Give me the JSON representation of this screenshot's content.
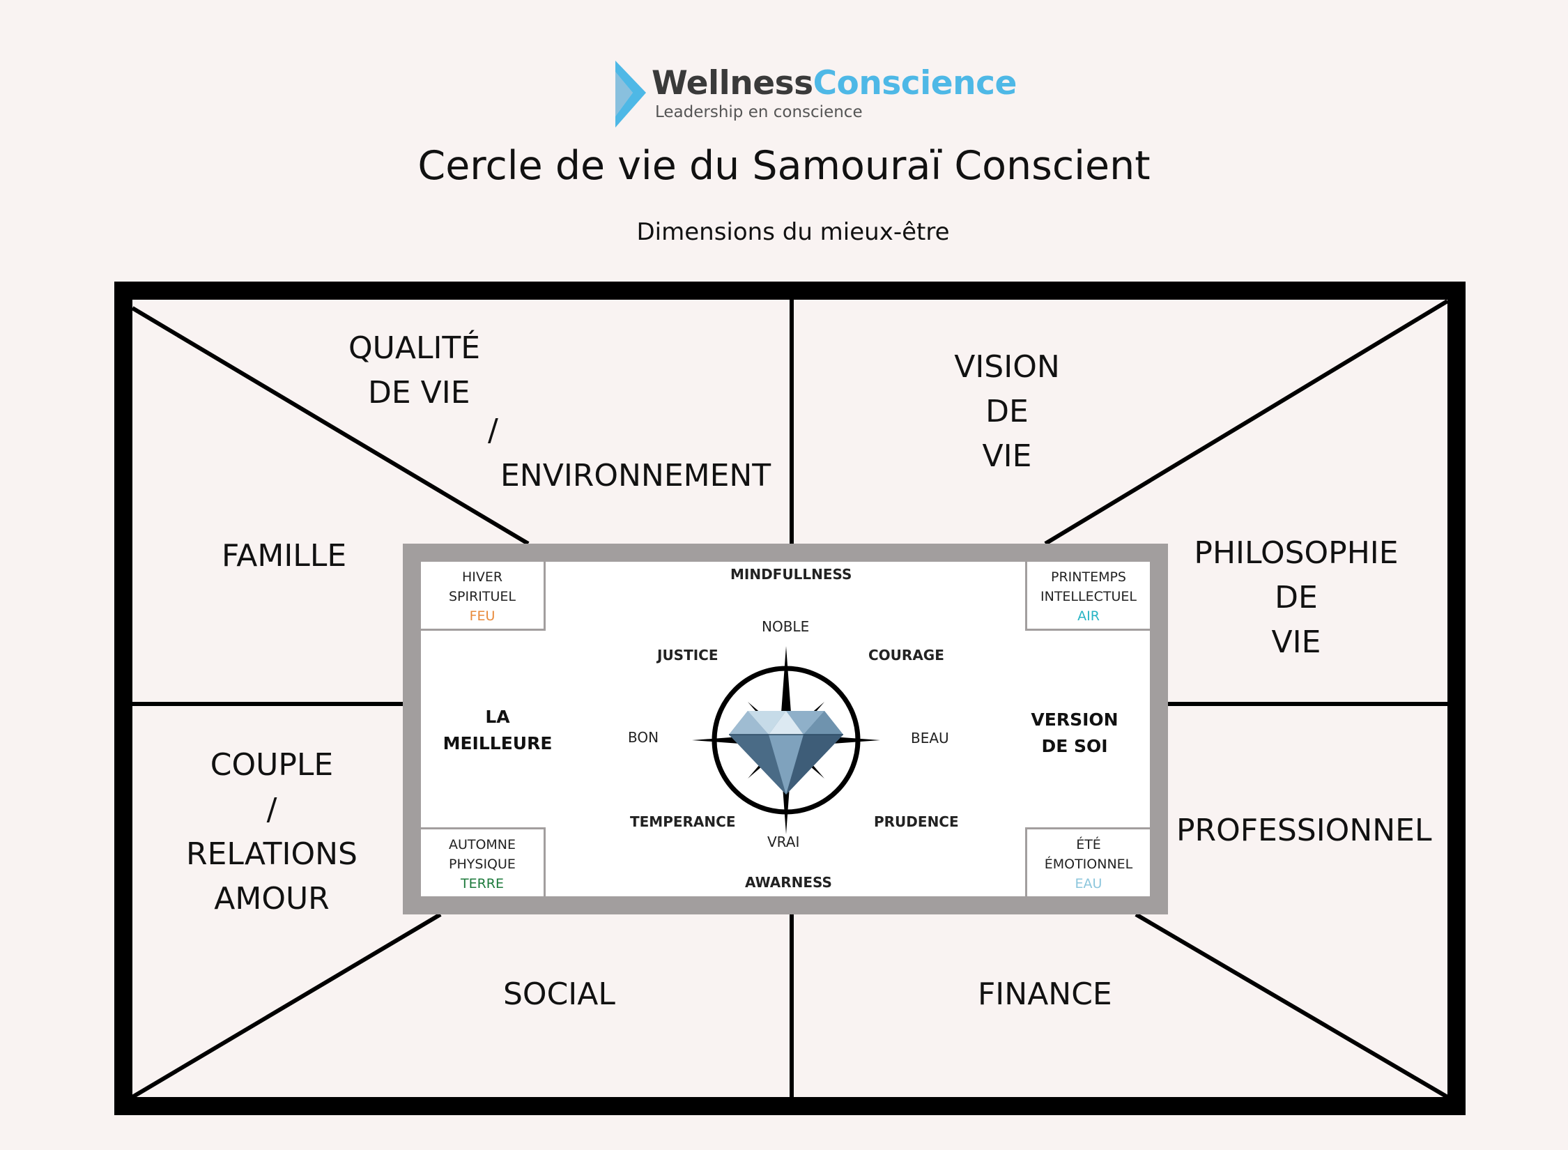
{
  "header": {
    "brand_part1": "Wellness",
    "brand_part2": "Conscience",
    "tagline": "Leadership en conscience",
    "title": "Cercle de vie du Samouraï Conscient",
    "subtitle": "Dimensions du mieux-être"
  },
  "sectors": {
    "qualite": [
      "QUALITÉ",
      "DE VIE",
      "/",
      "ENVIRONNEMENT"
    ],
    "vision": [
      "VISION",
      "DE",
      "VIE"
    ],
    "famille": "FAMILLE",
    "philosophie": [
      "PHILOSOPHIE",
      "DE",
      "VIE"
    ],
    "couple": [
      "COUPLE",
      "/",
      "RELATIONS",
      "AMOUR"
    ],
    "professionnel": "PROFESSIONNEL",
    "social": "SOCIAL",
    "finance": "FINANCE"
  },
  "center": {
    "top": "MINDFULLNESS",
    "bottom": "AWARNESS",
    "left": [
      "LA",
      "MEILLEURE"
    ],
    "right": [
      "VERSION",
      "DE SOI"
    ],
    "corners": {
      "top_left": {
        "line1": "HIVER",
        "line2": "SPIRITUEL",
        "element": "FEU",
        "color": "#e8893a"
      },
      "top_right": {
        "line1": "PRINTEMPS",
        "line2": "INTELLECTUEL",
        "element": "AIR",
        "color": "#27b4c4"
      },
      "bottom_left": {
        "line1": "AUTOMNE",
        "line2": "PHYSIQUE",
        "element": "TERRE",
        "color": "#1e7a3c"
      },
      "bottom_right": {
        "line1": "ÉTÉ",
        "line2": "ÉMOTIONNEL",
        "element": "EAU",
        "color": "#8cc6dc"
      }
    },
    "compass": {
      "noble": "NOBLE",
      "vrai": "VRAI",
      "bon": "BON",
      "beau": "BEAU",
      "justice": "JUSTICE",
      "courage": "COURAGE",
      "temperance": "TEMPERANCE",
      "prudence": "PRUDENCE",
      "center_icon": "diamond-icon"
    }
  }
}
